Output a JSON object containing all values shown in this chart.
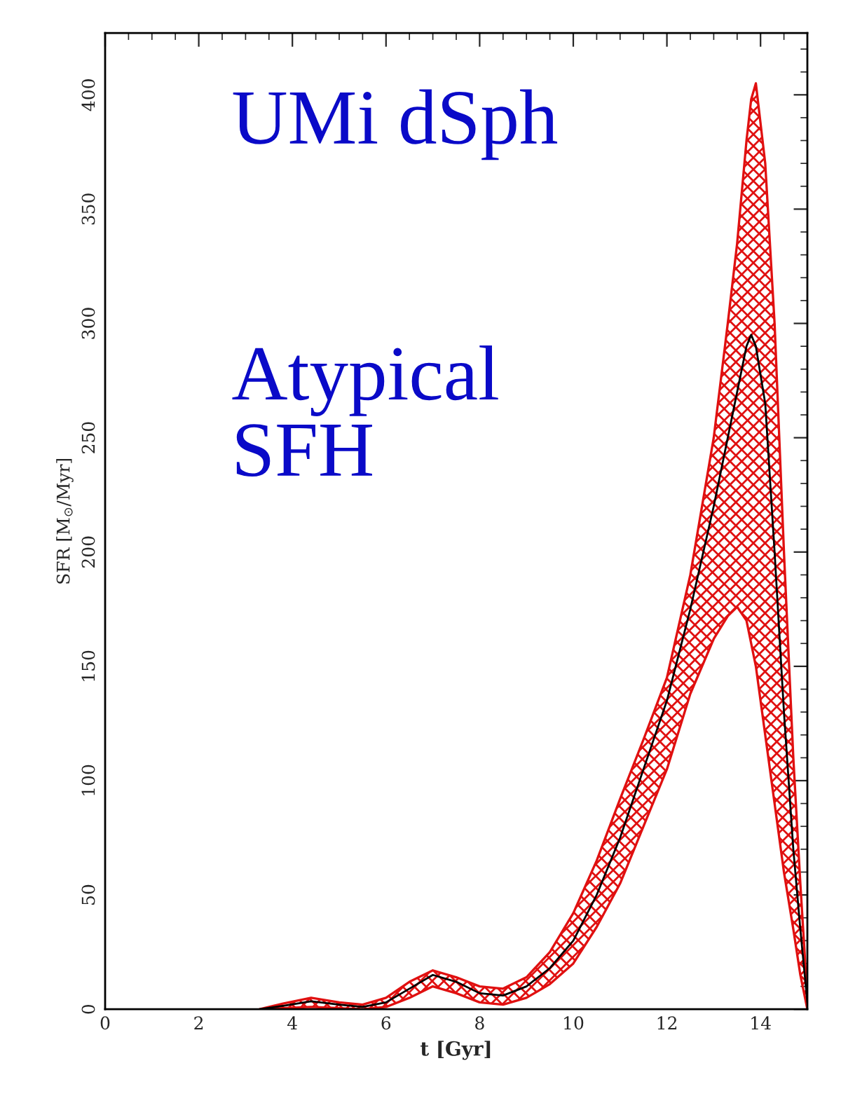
{
  "chart_data": {
    "type": "line",
    "title": "UMi dSph",
    "xlabel": "t [Gyr]",
    "ylabel": "SFR [M$_{⊙}$/Myr]",
    "annotations": [
      "Atypical\nSFH"
    ],
    "xlim": [
      0,
      15
    ],
    "xticks": [
      0,
      2,
      4,
      6,
      8,
      10,
      12,
      14
    ],
    "ylim": [
      0,
      427
    ],
    "yticks": [
      0,
      50,
      100,
      150,
      200,
      250,
      300,
      350,
      400
    ],
    "grid": false,
    "legend": false,
    "series": [
      {
        "color": "#000000",
        "x": [
          3.3,
          3.8,
          4.4,
          5.0,
          5.5,
          6.0,
          6.5,
          7.0,
          7.5,
          8.0,
          8.5,
          9.0,
          9.5,
          10.0,
          10.5,
          11.0,
          11.5,
          12.0,
          12.5,
          13.0,
          13.3,
          13.5,
          13.7,
          13.8,
          13.9,
          14.1,
          14.3,
          14.5,
          14.7,
          14.85,
          15.0
        ],
        "values": [
          0,
          1.5,
          3.5,
          2,
          1,
          3,
          9,
          15,
          12,
          7,
          6,
          10,
          18,
          30,
          50,
          75,
          105,
          135,
          175,
          220,
          250,
          270,
          290,
          295,
          290,
          265,
          200,
          130,
          70,
          35,
          3
        ],
        "lower": [
          0,
          0.5,
          1,
          0.5,
          0,
          1,
          5,
          10,
          7,
          3,
          2,
          5,
          11,
          20,
          36,
          55,
          80,
          105,
          138,
          162,
          172,
          176,
          170,
          160,
          150,
          120,
          90,
          60,
          35,
          15,
          0
        ],
        "upper": [
          0,
          2.5,
          5,
          3,
          2,
          5,
          12,
          17,
          14,
          10,
          9,
          14,
          25,
          42,
          65,
          92,
          118,
          145,
          190,
          250,
          300,
          335,
          380,
          398,
          405,
          370,
          300,
          200,
          110,
          55,
          5
        ]
      }
    ]
  }
}
